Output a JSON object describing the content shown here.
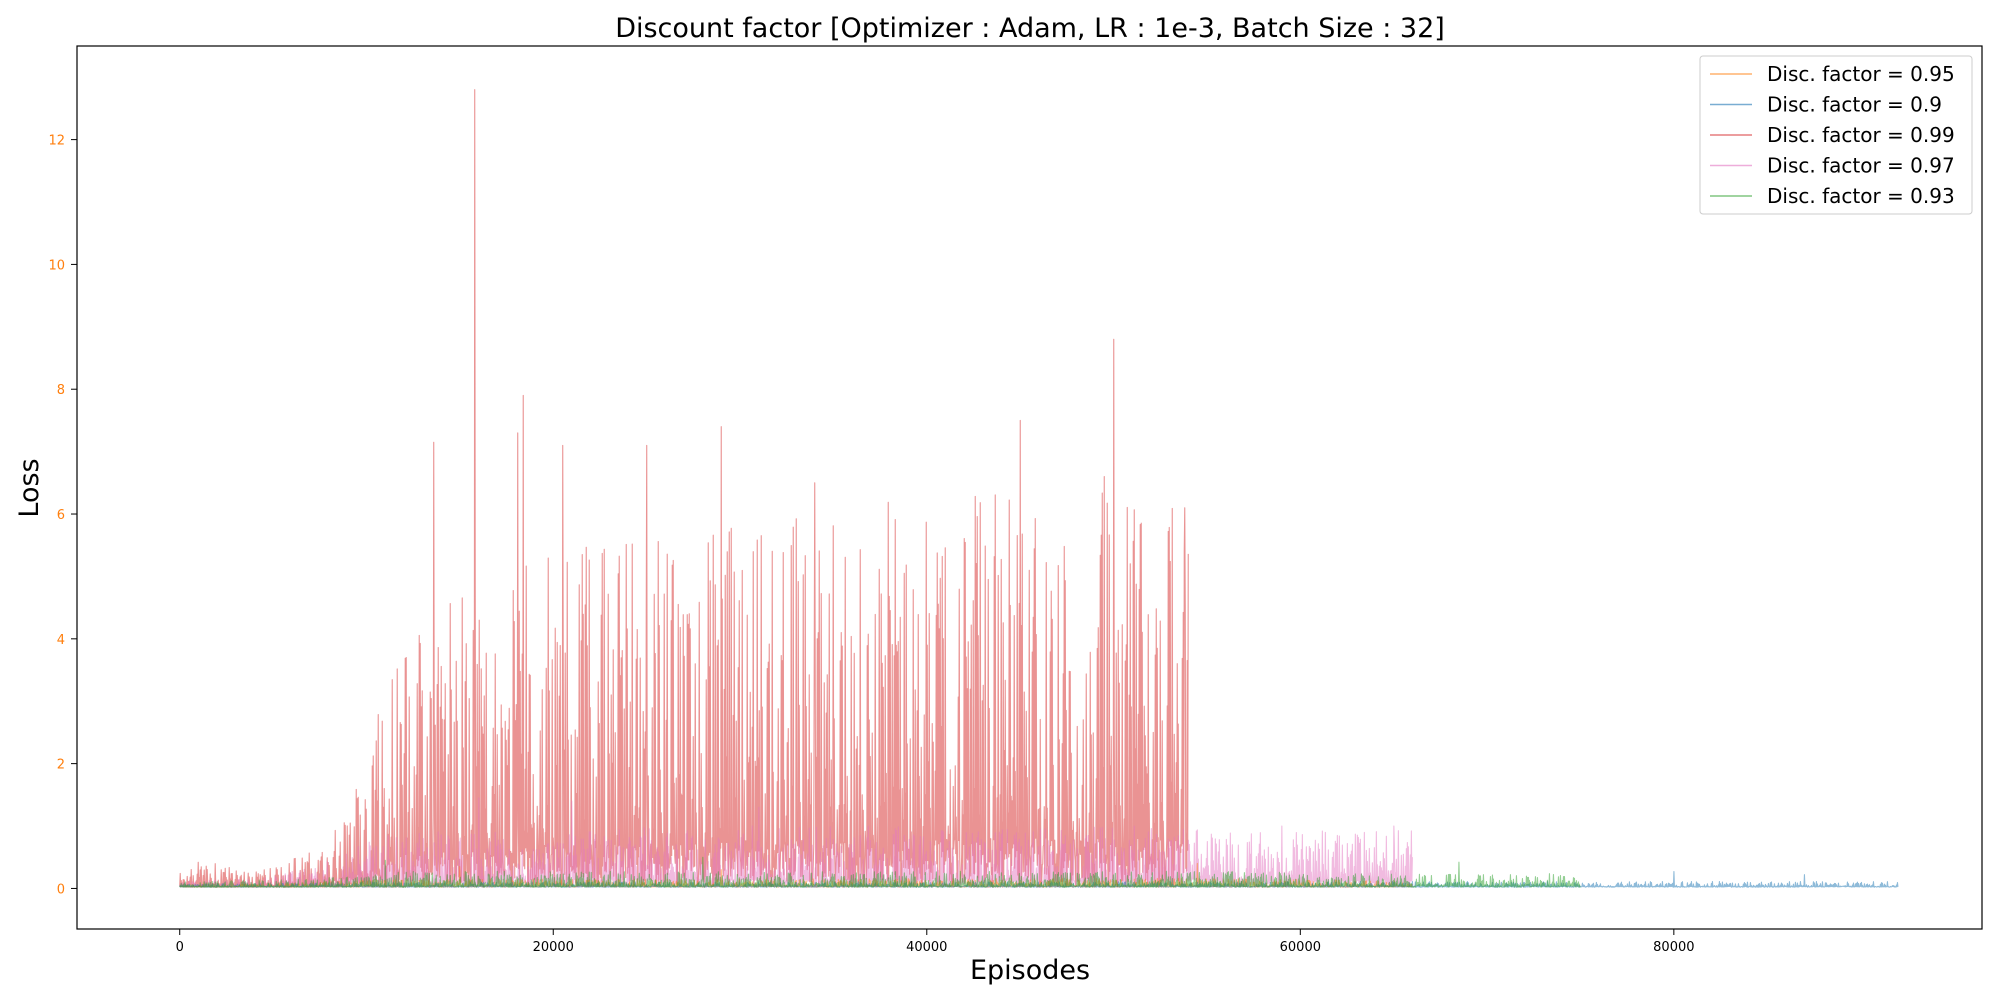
{
  "chart_data": {
    "type": "line",
    "title": "Discount factor [Optimizer : Adam, LR : 1e-3, Batch Size : 32]",
    "xlabel": "Episodes",
    "ylabel": "Loss",
    "xlim": [
      -5500,
      96500
    ],
    "ylim": [
      -0.65,
      13.5
    ],
    "xticks": [
      0,
      20000,
      40000,
      60000,
      80000
    ],
    "xtick_labels": [
      "0",
      "20000",
      "40000",
      "60000",
      "80000"
    ],
    "yticks": [
      0,
      2,
      4,
      6,
      8,
      10,
      12
    ],
    "ytick_labels": [
      "0",
      "2",
      "4",
      "6",
      "8",
      "10",
      "12"
    ],
    "ytick_color": "#ff7f0e",
    "grid": false,
    "legend_position": "upper right",
    "series": [
      {
        "name": "Disc. factor = 0.95",
        "color": "#ff7f0e",
        "x_range": [
          0,
          66000
        ],
        "noise": 0.12,
        "envelope": [
          [
            0,
            0.05
          ],
          [
            5000,
            0.05
          ],
          [
            10000,
            0.12
          ],
          [
            54000,
            0.14
          ],
          [
            66000,
            0.1
          ]
        ],
        "peaks": [
          [
            15000,
            0.35
          ],
          [
            29000,
            0.3
          ],
          [
            54500,
            0.4
          ]
        ]
      },
      {
        "name": "Disc. factor = 0.9",
        "color": "#1f77b4",
        "x_range": [
          0,
          92000
        ],
        "noise": 0.08,
        "envelope": [
          [
            0,
            0.05
          ],
          [
            10000,
            0.08
          ],
          [
            60000,
            0.09
          ],
          [
            92000,
            0.09
          ]
        ],
        "peaks": [
          [
            80000,
            0.27
          ],
          [
            87000,
            0.22
          ]
        ]
      },
      {
        "name": "Disc. factor = 0.99",
        "color": "#d62728",
        "x_range": [
          0,
          54000
        ],
        "noise": 1.0,
        "envelope": [
          [
            0,
            0.2
          ],
          [
            1000,
            0.35
          ],
          [
            5000,
            0.25
          ],
          [
            8000,
            0.6
          ],
          [
            10000,
            1.8
          ],
          [
            12000,
            3.5
          ],
          [
            20000,
            4.5
          ],
          [
            30000,
            5.0
          ],
          [
            40000,
            5.3
          ],
          [
            50000,
            5.3
          ],
          [
            54000,
            5.0
          ]
        ],
        "peaks": [
          [
            13600,
            7.15
          ],
          [
            15800,
            12.8
          ],
          [
            18100,
            7.3
          ],
          [
            18400,
            7.9
          ],
          [
            20500,
            7.1
          ],
          [
            25000,
            7.1
          ],
          [
            29000,
            7.4
          ],
          [
            34000,
            6.5
          ],
          [
            45000,
            7.5
          ],
          [
            49500,
            6.6
          ],
          [
            50000,
            8.8
          ],
          [
            53800,
            6.1
          ]
        ]
      },
      {
        "name": "Disc. factor = 0.97",
        "color": "#e377c2",
        "x_range": [
          0,
          66000
        ],
        "noise": 0.45,
        "envelope": [
          [
            0,
            0.1
          ],
          [
            5000,
            0.15
          ],
          [
            8000,
            0.4
          ],
          [
            11000,
            0.8
          ],
          [
            30000,
            0.9
          ],
          [
            54000,
            0.9
          ],
          [
            56000,
            0.8
          ],
          [
            66000,
            0.85
          ]
        ],
        "peaks": [
          [
            16000,
            1.45
          ],
          [
            21000,
            1.4
          ],
          [
            31000,
            1.3
          ],
          [
            59000,
            1.0
          ],
          [
            65000,
            1.0
          ]
        ]
      },
      {
        "name": "Disc. factor = 0.93",
        "color": "#2ca02c",
        "x_range": [
          0,
          75000
        ],
        "noise": 0.12,
        "envelope": [
          [
            0,
            0.08
          ],
          [
            8000,
            0.15
          ],
          [
            12000,
            0.25
          ],
          [
            55000,
            0.25
          ],
          [
            66000,
            0.2
          ],
          [
            75000,
            0.22
          ]
        ],
        "peaks": [
          [
            11000,
            0.45
          ],
          [
            28000,
            0.5
          ],
          [
            68500,
            0.42
          ]
        ]
      }
    ]
  }
}
